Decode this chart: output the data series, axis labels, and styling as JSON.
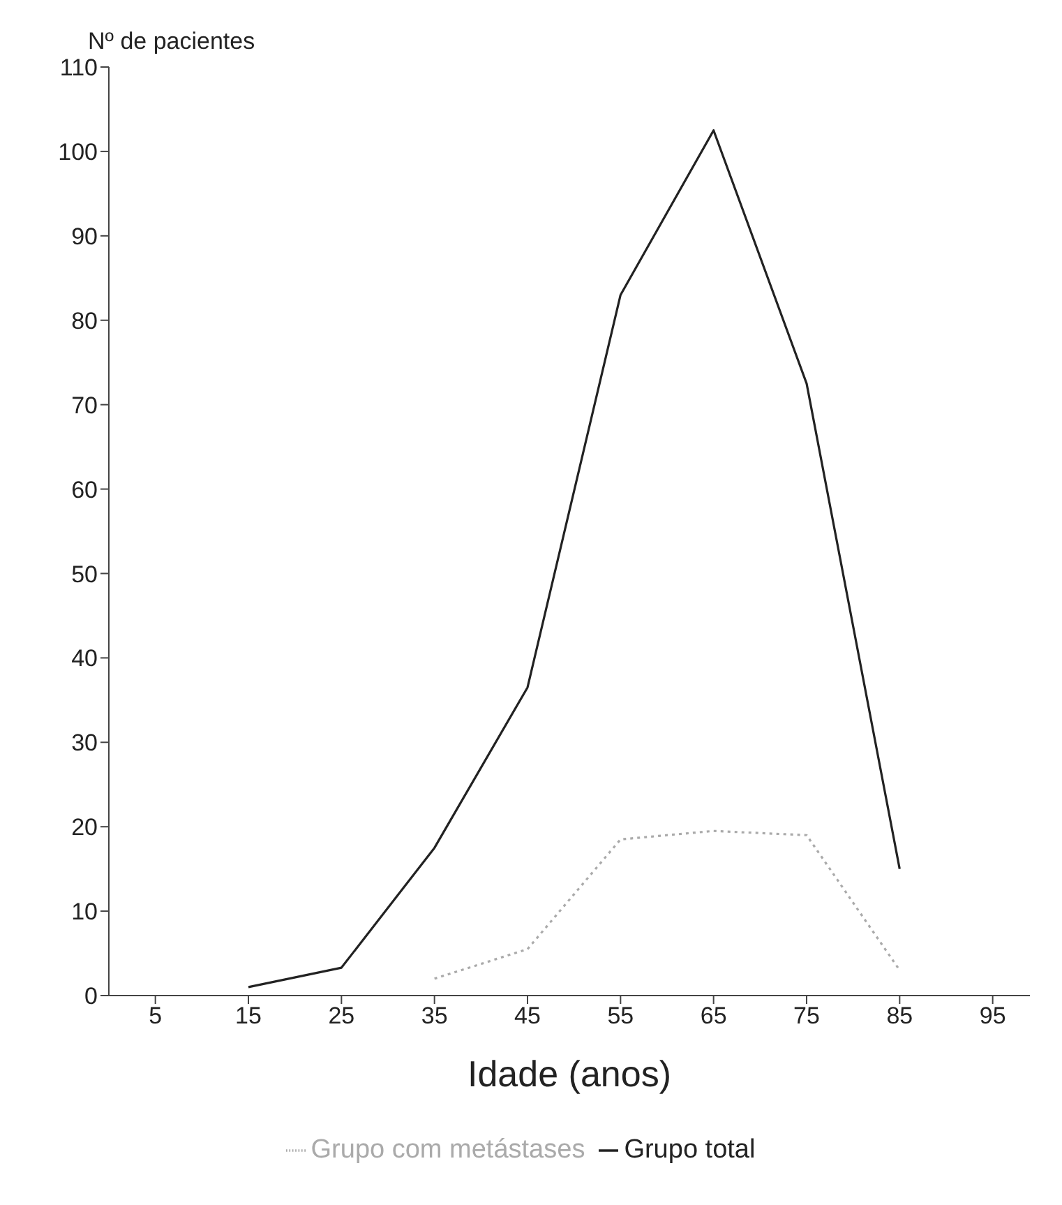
{
  "chart_data": {
    "type": "line",
    "ylabel": "Nº de pacientes",
    "xlabel": "Idade (anos)",
    "xlim": [
      0,
      99
    ],
    "xticks": [
      5,
      15,
      25,
      35,
      45,
      55,
      65,
      75,
      85,
      95
    ],
    "ylim": [
      0,
      110
    ],
    "yticks": [
      0,
      10,
      20,
      30,
      40,
      50,
      60,
      70,
      80,
      90,
      100,
      110
    ],
    "grid": false,
    "legend": "bottom",
    "marker": "none",
    "series": [
      {
        "name": "Grupo total",
        "color": "#222222",
        "line_style": "solid",
        "x": [
          15,
          25,
          35,
          45,
          55,
          65,
          75,
          85
        ],
        "values": [
          1,
          3.3,
          17.5,
          36.5,
          83,
          102.5,
          72.5,
          15
        ]
      },
      {
        "name": "Grupo com metástases",
        "color": "#aaaaaa",
        "line_style": "dotted",
        "x": [
          35,
          45,
          55,
          65,
          75,
          85
        ],
        "values": [
          2,
          5.5,
          18.5,
          19.5,
          19,
          3
        ]
      }
    ]
  }
}
